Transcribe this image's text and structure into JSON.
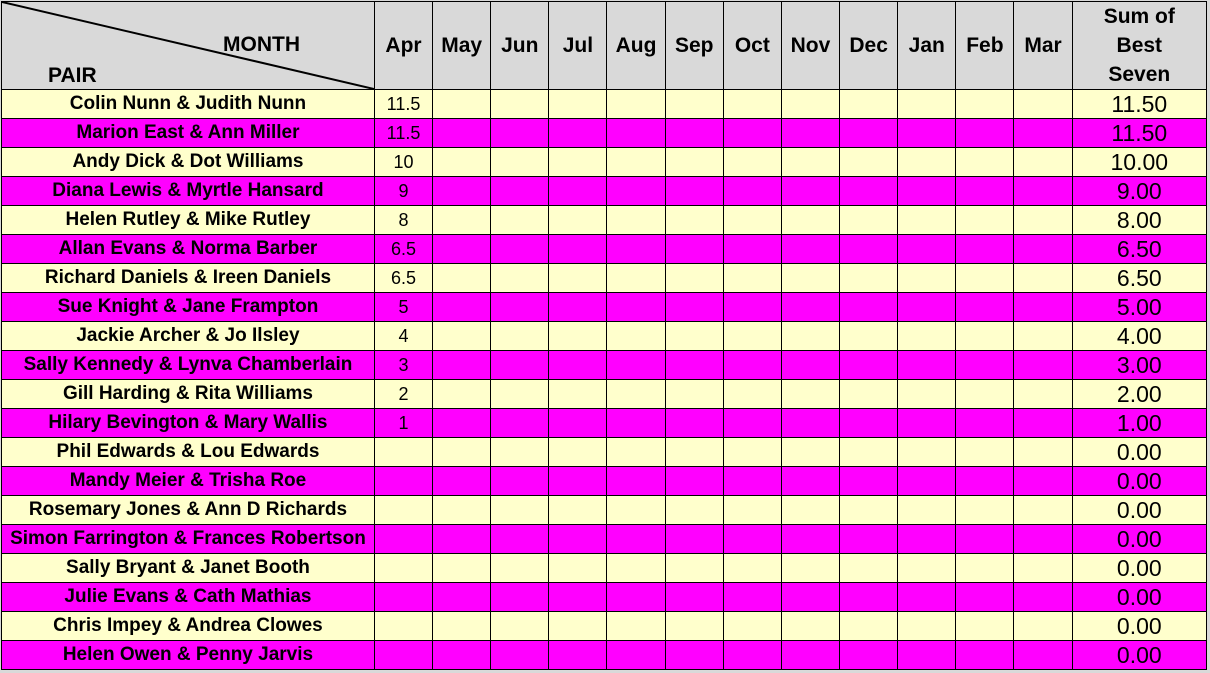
{
  "header": {
    "month_label": "MONTH",
    "pair_label": "PAIR",
    "months": [
      "Apr",
      "May",
      "Jun",
      "Jul",
      "Aug",
      "Sep",
      "Oct",
      "Nov",
      "Dec",
      "Jan",
      "Feb",
      "Mar"
    ],
    "sum_line1": "Sum of",
    "sum_line2": "Best",
    "sum_line3": "Seven"
  },
  "colors": {
    "odd_row": "#ffffcc",
    "even_row": "#ff00ff",
    "header": "#d9d9d9"
  },
  "rows": [
    {
      "pair": "Colin Nunn & Judith Nunn",
      "apr": "11.5",
      "sum": "11.50"
    },
    {
      "pair": "Marion East & Ann Miller",
      "apr": "11.5",
      "sum": "11.50"
    },
    {
      "pair": "Andy Dick & Dot Williams",
      "apr": "10",
      "sum": "10.00"
    },
    {
      "pair": "Diana Lewis & Myrtle Hansard",
      "apr": "9",
      "sum": "9.00"
    },
    {
      "pair": "Helen Rutley & Mike Rutley",
      "apr": "8",
      "sum": "8.00"
    },
    {
      "pair": "Allan Evans & Norma Barber",
      "apr": "6.5",
      "sum": "6.50"
    },
    {
      "pair": "Richard Daniels & Ireen Daniels",
      "apr": "6.5",
      "sum": "6.50"
    },
    {
      "pair": "Sue Knight & Jane Frampton",
      "apr": "5",
      "sum": "5.00"
    },
    {
      "pair": "Jackie Archer & Jo Ilsley",
      "apr": "4",
      "sum": "4.00"
    },
    {
      "pair": "Sally Kennedy & Lynva Chamberlain",
      "apr": "3",
      "sum": "3.00"
    },
    {
      "pair": "Gill Harding & Rita Williams",
      "apr": "2",
      "sum": "2.00"
    },
    {
      "pair": "Hilary Bevington & Mary Wallis",
      "apr": "1",
      "sum": "1.00"
    },
    {
      "pair": "Phil Edwards & Lou Edwards",
      "apr": "",
      "sum": "0.00"
    },
    {
      "pair": "Mandy Meier & Trisha Roe",
      "apr": "",
      "sum": "0.00"
    },
    {
      "pair": "Rosemary Jones & Ann D Richards",
      "apr": "",
      "sum": "0.00"
    },
    {
      "pair": "Simon Farrington & Frances Robertson",
      "apr": "",
      "sum": "0.00"
    },
    {
      "pair": "Sally Bryant & Janet Booth",
      "apr": "",
      "sum": "0.00"
    },
    {
      "pair": "Julie Evans & Cath Mathias",
      "apr": "",
      "sum": "0.00"
    },
    {
      "pair": "Chris Impey & Andrea Clowes",
      "apr": "",
      "sum": "0.00"
    },
    {
      "pair": "Helen Owen & Penny Jarvis",
      "apr": "",
      "sum": "0.00"
    }
  ]
}
